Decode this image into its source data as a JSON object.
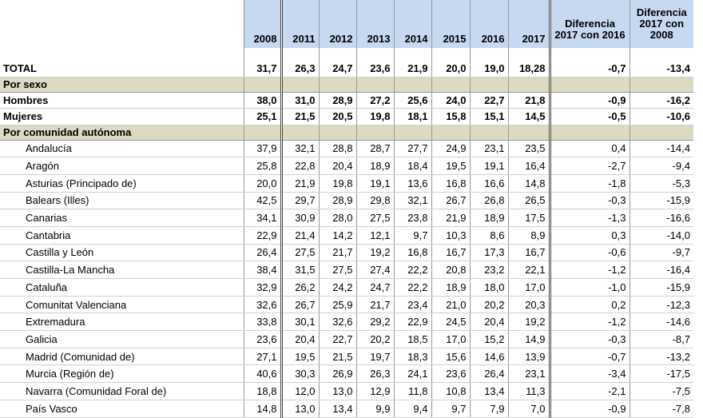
{
  "header": {
    "columns": [
      "2008",
      "2011",
      "2012",
      "2013",
      "2014",
      "2015",
      "2016",
      "2017",
      "Diferencia 2017 con 2016",
      "Diferencia 2017 con 2008"
    ]
  },
  "total": {
    "label": "TOTAL",
    "values": [
      "31,7",
      "26,3",
      "24,7",
      "23,6",
      "21,9",
      "20,0",
      "19,0",
      "18,28",
      "-0,7",
      "-13,4"
    ]
  },
  "sections": [
    {
      "title": "Por sexo",
      "bold": true,
      "rows": [
        {
          "label": "Hombres",
          "values": [
            "38,0",
            "31,0",
            "28,9",
            "27,2",
            "25,6",
            "24,0",
            "22,7",
            "21,8",
            "-0,9",
            "-16,2"
          ]
        },
        {
          "label": "Mujeres",
          "values": [
            "25,1",
            "21,5",
            "20,5",
            "19,8",
            "18,1",
            "15,8",
            "15,1",
            "14,5",
            "-0,5",
            "-10,6"
          ]
        }
      ]
    },
    {
      "title": "Por comunidad autónoma",
      "bold": false,
      "rows": [
        {
          "label": "Andalucía",
          "values": [
            "37,9",
            "32,1",
            "28,8",
            "28,7",
            "27,7",
            "24,9",
            "23,1",
            "23,5",
            "0,4",
            "-14,4"
          ]
        },
        {
          "label": "Aragón",
          "values": [
            "25,8",
            "22,8",
            "20,4",
            "18,9",
            "18,4",
            "19,5",
            "19,1",
            "16,4",
            "-2,7",
            "-9,4"
          ]
        },
        {
          "label": "Asturias (Principado de)",
          "values": [
            "20,0",
            "21,9",
            "19,8",
            "19,1",
            "13,6",
            "16,8",
            "16,6",
            "14,8",
            "-1,8",
            "-5,3"
          ]
        },
        {
          "label": "Balears (Illes)",
          "values": [
            "42,5",
            "29,7",
            "28,9",
            "29,8",
            "32,1",
            "26,7",
            "26,8",
            "26,5",
            "-0,3",
            "-15,9"
          ]
        },
        {
          "label": "Canarias",
          "values": [
            "34,1",
            "30,9",
            "28,0",
            "27,5",
            "23,8",
            "21,9",
            "18,9",
            "17,5",
            "-1,3",
            "-16,6"
          ]
        },
        {
          "label": "Cantabria",
          "values": [
            "22,9",
            "21,4",
            "14,2",
            "12,1",
            "9,7",
            "10,3",
            "8,6",
            "8,9",
            "0,3",
            "-14,0"
          ]
        },
        {
          "label": "Castilla y León",
          "values": [
            "26,4",
            "27,5",
            "21,7",
            "19,2",
            "16,8",
            "16,7",
            "17,3",
            "16,7",
            "-0,6",
            "-9,7"
          ]
        },
        {
          "label": "Castilla-La Mancha",
          "values": [
            "38,4",
            "31,5",
            "27,5",
            "27,4",
            "22,2",
            "20,8",
            "23,2",
            "22,1",
            "-1,2",
            "-16,4"
          ]
        },
        {
          "label": "Cataluña",
          "values": [
            "32,9",
            "26,2",
            "24,2",
            "24,7",
            "22,2",
            "18,9",
            "18,0",
            "17,0",
            "-1,0",
            "-15,9"
          ]
        },
        {
          "label": "Comunitat Valenciana",
          "values": [
            "32,6",
            "26,7",
            "25,9",
            "21,7",
            "23,4",
            "21,0",
            "20,2",
            "20,3",
            "0,2",
            "-12,3"
          ]
        },
        {
          "label": "Extremadura",
          "values": [
            "33,8",
            "30,1",
            "32,6",
            "29,2",
            "22,9",
            "24,5",
            "20,4",
            "19,2",
            "-1,2",
            "-14,6"
          ]
        },
        {
          "label": "Galicia",
          "values": [
            "23,6",
            "20,4",
            "22,7",
            "20,2",
            "18,5",
            "17,0",
            "15,2",
            "14,9",
            "-0,3",
            "-8,7"
          ]
        },
        {
          "label": "Madrid (Comunidad de)",
          "values": [
            "27,1",
            "19,5",
            "21,5",
            "19,7",
            "18,3",
            "15,6",
            "14,6",
            "13,9",
            "-0,7",
            "-13,2"
          ]
        },
        {
          "label": "Murcia (Región de)",
          "values": [
            "40,6",
            "30,3",
            "26,9",
            "26,3",
            "24,1",
            "23,6",
            "26,4",
            "23,1",
            "-3,4",
            "-17,5"
          ]
        },
        {
          "label": "Navarra (Comunidad Foral de)",
          "values": [
            "18,8",
            "12,0",
            "13,0",
            "12,9",
            "11,8",
            "10,8",
            "13,4",
            "11,3",
            "-2,1",
            "-7,5"
          ]
        },
        {
          "label": "País Vasco",
          "values": [
            "14,8",
            "13,0",
            "13,4",
            "9,9",
            "9,4",
            "9,7",
            "7,9",
            "7,0",
            "-0,9",
            "-7,8"
          ]
        }
      ]
    }
  ]
}
